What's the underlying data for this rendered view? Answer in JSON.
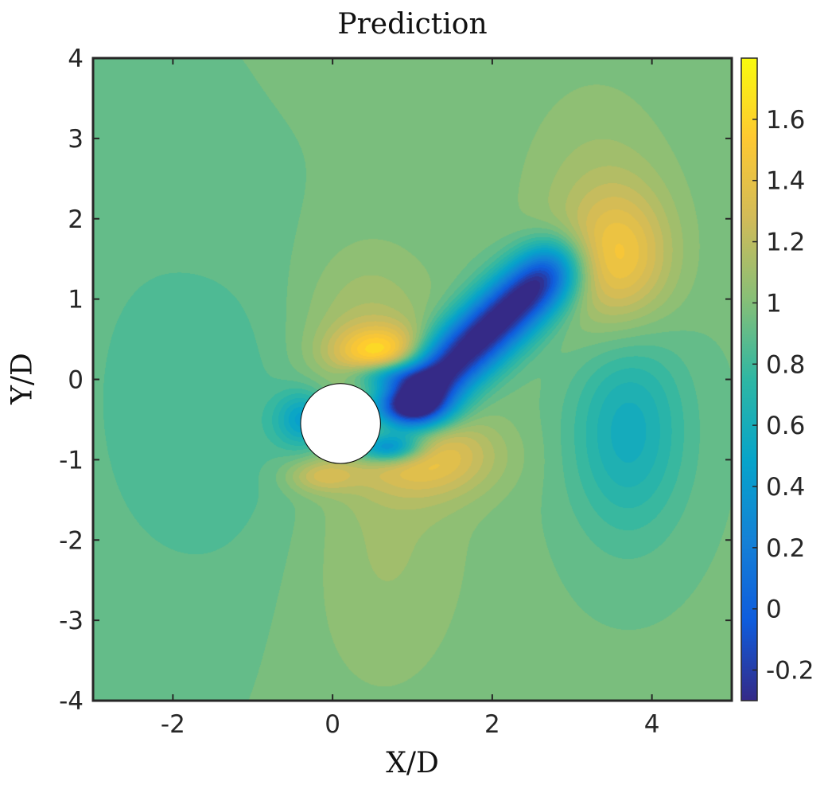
{
  "chart_data": {
    "type": "heatmap",
    "title": "Prediction",
    "xlabel": "X/D",
    "ylabel": "Y/D",
    "xlim": [
      -3,
      5
    ],
    "ylim": [
      -4,
      4
    ],
    "xticks": [
      -2,
      0,
      2,
      4
    ],
    "xtick_labels": [
      "-2",
      "0",
      "2",
      "4"
    ],
    "yticks": [
      -4,
      -3,
      -2,
      -1,
      0,
      1,
      2,
      3,
      4
    ],
    "ytick_labels": [
      "-4",
      "-3",
      "-2",
      "-1",
      "0",
      "1",
      "2",
      "3",
      "4"
    ],
    "colormap": "parula",
    "clim": [
      -0.3,
      1.8
    ],
    "colorbar_ticks": [
      -0.2,
      0,
      0.2,
      0.4,
      0.6,
      0.8,
      1,
      1.2,
      1.4,
      1.6
    ],
    "colorbar_tick_labels": [
      "-0.2",
      "0",
      "0.2",
      "0.4",
      "0.6",
      "0.8",
      "1",
      "1.2",
      "1.4",
      "1.6"
    ],
    "colorbar_location": "right",
    "grid": false,
    "obstacle": {
      "shape": "circle",
      "center": [
        0.1,
        -0.55
      ],
      "radius": 0.5,
      "color": "#ffffff"
    },
    "freestream_value": 0.95
  }
}
